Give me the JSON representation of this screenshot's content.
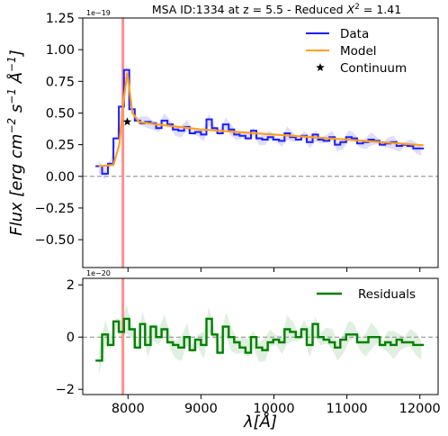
{
  "chart_data": [
    {
      "type": "line",
      "title": "MSA ID:1334 at z = 5.5 - Reduced X² = 1.41",
      "title_parts": {
        "prefix": "MSA ID:1334 at z = 5.5 - Reduced ",
        "chi": "X",
        "sup": "2",
        "suffix": " = 1.41"
      },
      "ylabel": "Flux [erg cm⁻² s⁻¹ Å⁻¹]",
      "ylabel_parts": {
        "a": "Flux [erg cm",
        "e1": "−2",
        "b": " s",
        "e2": "−1",
        "c": " Å",
        "e3": "−1",
        "d": "]"
      },
      "scale_label": "1e−19",
      "xlim": [
        7380,
        12250
      ],
      "ylim": [
        -0.72,
        1.25
      ],
      "yticks": [
        -0.5,
        -0.25,
        0.0,
        0.25,
        0.5,
        0.75,
        1.0,
        1.25
      ],
      "ytick_labels": [
        "−0.50",
        "−0.25",
        "0.00",
        "0.25",
        "0.50",
        "0.75",
        "1.00",
        "1.25"
      ],
      "vline_x": 7930,
      "hline_y": 0,
      "legend_placement": "upper right",
      "series": [
        {
          "name": "Data",
          "color": "#1f1fff",
          "style": "steps",
          "x": [
            7600,
            7690,
            7760,
            7840,
            7910,
            7980,
            8055,
            8130,
            8200,
            8270,
            8350,
            8420,
            8500,
            8580,
            8650,
            8730,
            8810,
            8880,
            8960,
            9040,
            9110,
            9190,
            9260,
            9340,
            9420,
            9490,
            9570,
            9650,
            9720,
            9800,
            9880,
            9950,
            10030,
            10110,
            10180,
            10260,
            10340,
            10410,
            10490,
            10570,
            10640,
            10720,
            10800,
            10870,
            10950,
            11030,
            11100,
            11180,
            11260,
            11330,
            11410,
            11490,
            11560,
            11640,
            11720,
            11790,
            11870,
            11950,
            12020
          ],
          "y": [
            0.08,
            0.02,
            0.1,
            0.3,
            0.55,
            0.84,
            0.53,
            0.44,
            0.42,
            0.43,
            0.42,
            0.38,
            0.44,
            0.41,
            0.37,
            0.36,
            0.39,
            0.34,
            0.35,
            0.33,
            0.45,
            0.38,
            0.34,
            0.41,
            0.37,
            0.33,
            0.32,
            0.3,
            0.36,
            0.3,
            0.29,
            0.31,
            0.29,
            0.28,
            0.34,
            0.31,
            0.29,
            0.32,
            0.27,
            0.33,
            0.29,
            0.28,
            0.31,
            0.25,
            0.27,
            0.31,
            0.3,
            0.26,
            0.27,
            0.29,
            0.28,
            0.25,
            0.26,
            0.27,
            0.24,
            0.25,
            0.24,
            0.22,
            0.22
          ],
          "band": "±0.04"
        },
        {
          "name": "Model",
          "color": "#ffa01f",
          "style": "line",
          "x": [
            7600,
            7800,
            7880,
            7930,
            7990,
            8060,
            8150,
            8400,
            9000,
            10000,
            11000,
            12050
          ],
          "y": [
            0.08,
            0.09,
            0.25,
            0.55,
            0.82,
            0.5,
            0.43,
            0.41,
            0.37,
            0.33,
            0.29,
            0.245
          ]
        },
        {
          "name": "Continuum",
          "color": "#000000",
          "style": "marker",
          "x": [
            7990
          ],
          "y": [
            0.43
          ]
        }
      ]
    },
    {
      "type": "line",
      "ylabel": "",
      "xlabel": "λ[Å]",
      "scale_label": "1e−20",
      "xlim": [
        7380,
        12250
      ],
      "ylim": [
        -2.2,
        2.25
      ],
      "xticks": [
        8000,
        9000,
        10000,
        11000,
        12000
      ],
      "xtick_labels": [
        "8000",
        "9000",
        "10000",
        "11000",
        "12000"
      ],
      "yticks": [
        -2,
        0,
        2
      ],
      "ytick_labels": [
        "−2",
        "0",
        "2"
      ],
      "vline_x": 7930,
      "hline_y": 0,
      "legend_placement": "upper right",
      "series": [
        {
          "name": "Residuals",
          "color": "#008000",
          "style": "steps",
          "x": [
            7600,
            7690,
            7760,
            7840,
            7910,
            7980,
            8055,
            8130,
            8200,
            8270,
            8350,
            8420,
            8500,
            8580,
            8650,
            8730,
            8810,
            8880,
            8960,
            9040,
            9110,
            9190,
            9260,
            9340,
            9420,
            9490,
            9570,
            9650,
            9720,
            9800,
            9880,
            9950,
            10030,
            10110,
            10180,
            10260,
            10340,
            10410,
            10490,
            10570,
            10640,
            10720,
            10800,
            10870,
            10950,
            11030,
            11100,
            11180,
            11260,
            11330,
            11410,
            11490,
            11560,
            11640,
            11720,
            11790,
            11870,
            11950,
            12020
          ],
          "y": [
            -0.9,
            0.1,
            -0.3,
            0.6,
            0.2,
            0.7,
            0.3,
            -0.4,
            0.5,
            -0.3,
            0.4,
            0.0,
            0.3,
            -0.2,
            -0.3,
            -0.4,
            0.0,
            -0.5,
            -0.1,
            -0.3,
            0.7,
            0.1,
            -0.6,
            0.4,
            0.0,
            -0.2,
            -0.4,
            -0.6,
            0.0,
            -0.4,
            -0.5,
            -0.2,
            -0.1,
            -0.2,
            0.3,
            0.2,
            0.0,
            0.3,
            -0.3,
            0.5,
            0.0,
            -0.1,
            -0.2,
            -0.4,
            -0.1,
            0.1,
            0.1,
            -0.2,
            -0.2,
            0.0,
            0.0,
            -0.3,
            -0.2,
            -0.3,
            -0.1,
            -0.2,
            -0.2,
            -0.3,
            -0.3
          ],
          "band": "±0.4"
        }
      ]
    }
  ]
}
